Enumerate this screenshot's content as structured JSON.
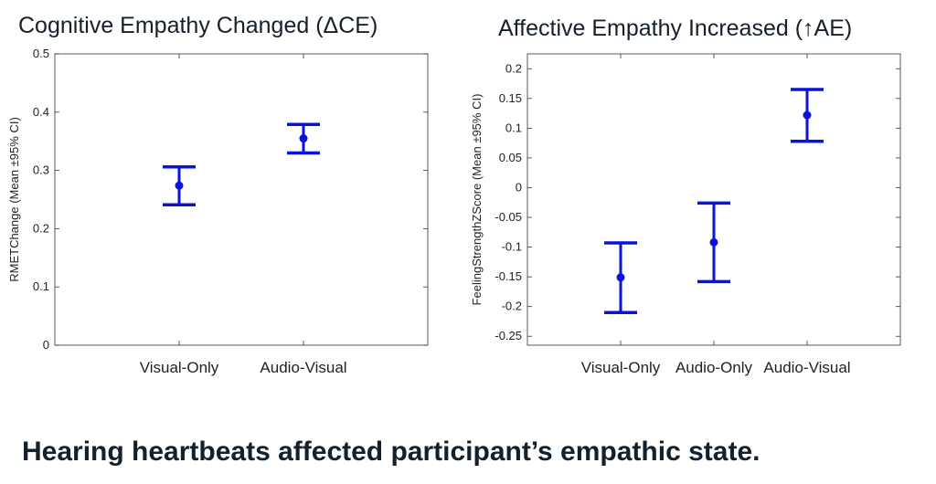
{
  "caption": "Hearing heartbeats affected participant’s empathic state.",
  "colors": {
    "errorbar": "#0a14d8",
    "axis": "#333333"
  },
  "chart_data": [
    {
      "type": "errorbar",
      "title": "Cognitive Empathy Changed (ΔCE)",
      "ylabel": "RMETChange (Mean ±95% CI)",
      "categories": [
        "Visual-Only",
        "Audio-Visual"
      ],
      "mean": [
        0.274,
        0.355
      ],
      "lower": [
        0.241,
        0.33
      ],
      "upper": [
        0.306,
        0.379
      ],
      "ylim": [
        0,
        0.5
      ],
      "yticks": [
        0,
        0.1,
        0.2,
        0.3,
        0.4,
        0.5
      ],
      "ytick_labels": [
        "0",
        "0.1",
        "0.2",
        "0.3",
        "0.4",
        "0.5"
      ],
      "grid": false
    },
    {
      "type": "errorbar",
      "title": "Affective Empathy Increased (↑AE)",
      "ylabel": "FeelingStrengthZScore (Mean ±95% CI)",
      "categories": [
        "Visual-Only",
        "Audio-Only",
        "Audio-Visual"
      ],
      "mean": [
        -0.151,
        -0.092,
        0.122
      ],
      "lower": [
        -0.21,
        -0.158,
        0.078
      ],
      "upper": [
        -0.093,
        -0.026,
        0.165
      ],
      "ylim": [
        -0.265,
        0.225
      ],
      "yticks": [
        -0.25,
        -0.2,
        -0.15,
        -0.1,
        -0.05,
        0,
        0.05,
        0.1,
        0.15,
        0.2
      ],
      "ytick_labels": [
        "-0.25",
        "-0.2",
        "-0.15",
        "-0.1",
        "-0.05",
        "0",
        "0.05",
        "0.1",
        "0.15",
        "0.2"
      ],
      "grid": false
    }
  ]
}
